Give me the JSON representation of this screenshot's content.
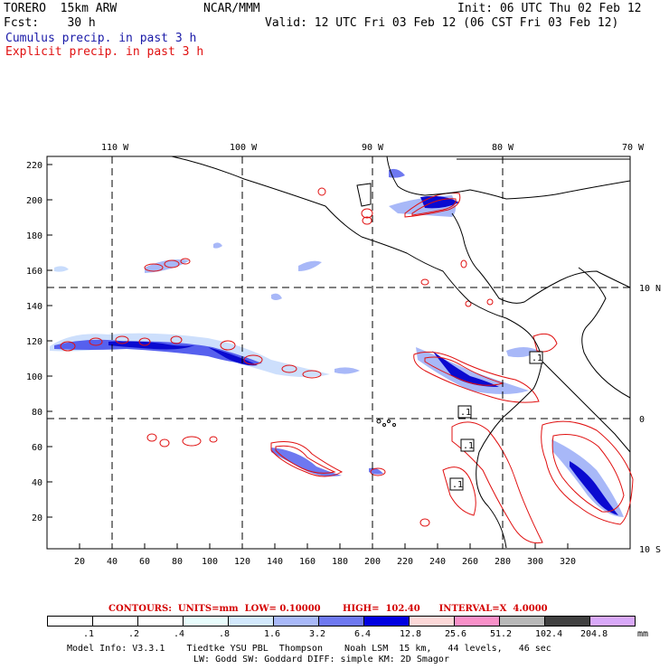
{
  "header": {
    "model": "TORERO  15km ARW",
    "center": "NCAR/MMM",
    "init": "Init: 06 UTC Thu 02 Feb 12",
    "fcst": "Fcst:    30 h",
    "valid": "Valid: 12 UTC Fri 03 Feb 12 (06 CST Fri 03 Feb 12)",
    "cumulus": "Cumulus precip. in past 3 h",
    "explicit": "Explicit precip. in past 3 h"
  },
  "map": {
    "lon_labels": [
      "110 W",
      "100 W",
      "90 W",
      "80 W",
      "70 W"
    ],
    "lat_labels": [
      "10 N",
      "0",
      "10 S"
    ],
    "y_ticks": [
      "220",
      "200",
      "180",
      "160",
      "140",
      "120",
      "100",
      "80",
      "60",
      "40",
      "20"
    ],
    "x_ticks": [
      "20",
      "40",
      "60",
      "80",
      "100",
      "120",
      "140",
      "160",
      "180",
      "200",
      "220",
      "240",
      "260",
      "280",
      "300",
      "320"
    ],
    "contour_labels": [
      ".1",
      ".1",
      ".1",
      ".1"
    ],
    "colors": {
      "contour": "#e01010",
      "cumulus": "#1a1aa8",
      "coast": "#000000"
    }
  },
  "contour_info": {
    "text": "CONTOURS:  UNITS=mm  LOW= 0.10000       HIGH=  102.40      INTERVAL=X  4.0000"
  },
  "scale": {
    "colors": [
      "#ffffff",
      "#ffffff",
      "#ffffff",
      "#e8fcfc",
      "#d2e8fc",
      "#a8b8f8",
      "#6e78f0",
      "#0000e0",
      "#fcd8d8",
      "#f890c8",
      "#b8b8b8",
      "#404040",
      "#d8a8f8"
    ],
    "labels": [
      ".1",
      ".2",
      ".4",
      ".8",
      "1.6",
      "3.2",
      "6.4",
      "12.8",
      "25.6",
      "51.2",
      "102.4",
      "204.8"
    ],
    "unit": "mm"
  },
  "footer": {
    "line1": "Model Info: V3.3.1    Tiedtke YSU PBL  Thompson    Noah LSM  15 km,   44 levels,   46 sec",
    "line2": "LW: Godd SW: Goddard DIFF: simple KM: 2D Smagor"
  }
}
